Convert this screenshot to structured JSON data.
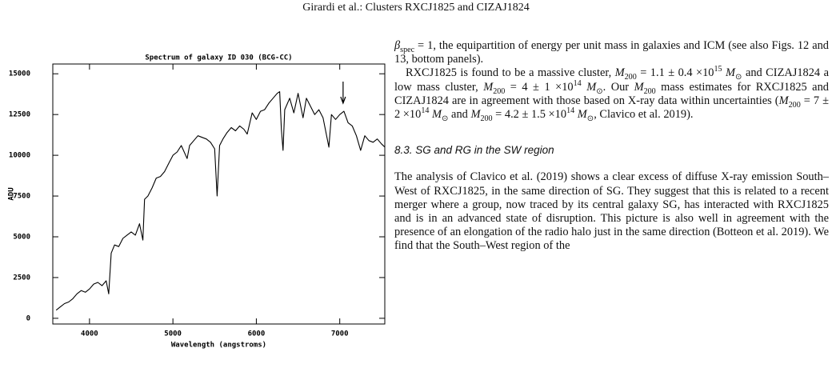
{
  "header": {
    "running_title": "Girardi et al.: Clusters RXCJ1825 and CIZAJ1824"
  },
  "chart_data": {
    "type": "line",
    "title": "Spectrum of galaxy ID 030 (BCG-CC)",
    "x_label": "Wavelength (angstroms)",
    "y_label": "ADU",
    "color": "#000000",
    "xlim": [
      3560,
      7540
    ],
    "ylim": [
      -350,
      15600
    ],
    "xticks": [
      4000,
      5000,
      6000,
      7000
    ],
    "yticks": [
      0,
      2500,
      5000,
      7500,
      10000,
      12500,
      15000
    ],
    "arrow_x": 7040,
    "x": [
      3600,
      3650,
      3700,
      3750,
      3800,
      3850,
      3900,
      3950,
      4000,
      4050,
      4100,
      4150,
      4200,
      4230,
      4260,
      4300,
      4350,
      4400,
      4450,
      4500,
      4550,
      4600,
      4640,
      4660,
      4700,
      4750,
      4800,
      4850,
      4900,
      4950,
      5000,
      5050,
      5100,
      5170,
      5200,
      5250,
      5300,
      5350,
      5400,
      5450,
      5500,
      5530,
      5560,
      5600,
      5650,
      5700,
      5750,
      5800,
      5850,
      5890,
      5950,
      6000,
      6050,
      6100,
      6150,
      6200,
      6250,
      6280,
      6300,
      6320,
      6340,
      6400,
      6450,
      6500,
      6560,
      6600,
      6650,
      6700,
      6750,
      6800,
      6870,
      6900,
      6950,
      7000,
      7050,
      7100,
      7150,
      7200,
      7250,
      7300,
      7350,
      7400,
      7450,
      7500,
      7540
    ],
    "values": [
      500,
      700,
      900,
      1000,
      1200,
      1500,
      1700,
      1600,
      1800,
      2100,
      2200,
      2000,
      2300,
      1500,
      4000,
      4500,
      4400,
      4900,
      5100,
      5300,
      5100,
      5800,
      4800,
      7300,
      7500,
      8000,
      8600,
      8700,
      9000,
      9500,
      10000,
      10200,
      10600,
      9800,
      10600,
      10900,
      11200,
      11100,
      11000,
      10800,
      10400,
      7500,
      10600,
      11000,
      11400,
      11700,
      11500,
      11800,
      11600,
      11300,
      12600,
      12200,
      12700,
      12800,
      13200,
      13500,
      13800,
      13900,
      11600,
      10300,
      12800,
      13500,
      12600,
      13800,
      12300,
      13500,
      13000,
      12500,
      12800,
      12300,
      10500,
      12500,
      12200,
      12500,
      12700,
      12000,
      11800,
      11200,
      10300,
      11200,
      10900,
      10800,
      11000,
      10700,
      10500
    ]
  },
  "text_column": {
    "paragraphs": [
      [
        {
          "text": "β",
          "style": "i"
        },
        {
          "text": "spec",
          "style": "sub"
        },
        {
          "text": " = 1, the equipartition of energy per unit mass in galaxies and ICM (see also Figs. 12 and 13, bottom panels)."
        }
      ],
      [
        {
          "text": "RXCJ1825 is found to be a massive cluster, "
        },
        {
          "text": "M",
          "style": "i"
        },
        {
          "text": "200",
          "style": "sub"
        },
        {
          "text": " = 1.1 ± 0.4 ×10"
        },
        {
          "text": "15",
          "style": "sup"
        },
        {
          "text": " "
        },
        {
          "text": "M",
          "style": "i"
        },
        {
          "text": "⊙",
          "style": "sub"
        },
        {
          "text": " and CIZAJ1824 a low mass cluster, "
        },
        {
          "text": "M",
          "style": "i"
        },
        {
          "text": "200",
          "style": "sub"
        },
        {
          "text": " = 4 ± 1 ×10"
        },
        {
          "text": "14",
          "style": "sup"
        },
        {
          "text": " "
        },
        {
          "text": "M",
          "style": "i"
        },
        {
          "text": "⊙",
          "style": "sub"
        },
        {
          "text": ". Our "
        },
        {
          "text": "M",
          "style": "i"
        },
        {
          "text": "200",
          "style": "sub"
        },
        {
          "text": " mass estimates for RXCJ1825 and CIZAJ1824 are in agreement with those based on X-ray data within uncertainties ("
        },
        {
          "text": "M",
          "style": "i"
        },
        {
          "text": "200",
          "style": "sub"
        },
        {
          "text": " = 7 ± 2 ×10"
        },
        {
          "text": "14",
          "style": "sup"
        },
        {
          "text": " "
        },
        {
          "text": "M",
          "style": "i"
        },
        {
          "text": "⊙",
          "style": "sub"
        },
        {
          "text": " and "
        },
        {
          "text": "M",
          "style": "i"
        },
        {
          "text": "200",
          "style": "sub"
        },
        {
          "text": " = 4.2 ± 1.5 ×10"
        },
        {
          "text": "14",
          "style": "sup"
        },
        {
          "text": " "
        },
        {
          "text": "M",
          "style": "i"
        },
        {
          "text": "⊙",
          "style": "sub"
        },
        {
          "text": ", Clavico et al. 2019)."
        }
      ]
    ],
    "section_heading": "8.3. SG and RG in the SW region",
    "section_paragraph": "The analysis of Clavico et al. (2019) shows a clear excess of diffuse X-ray emission South–West of RXCJ1825, in the same direction of SG. They suggest that this is related to a recent merger where a group, now traced by its central galaxy SG, has interacted with RXCJ1825 and is in an advanced state of disruption. This picture is also well in agreement with the presence of an elongation of the radio halo just in the same direction (Botteon et al. 2019). We find that the South–West region of the"
  }
}
